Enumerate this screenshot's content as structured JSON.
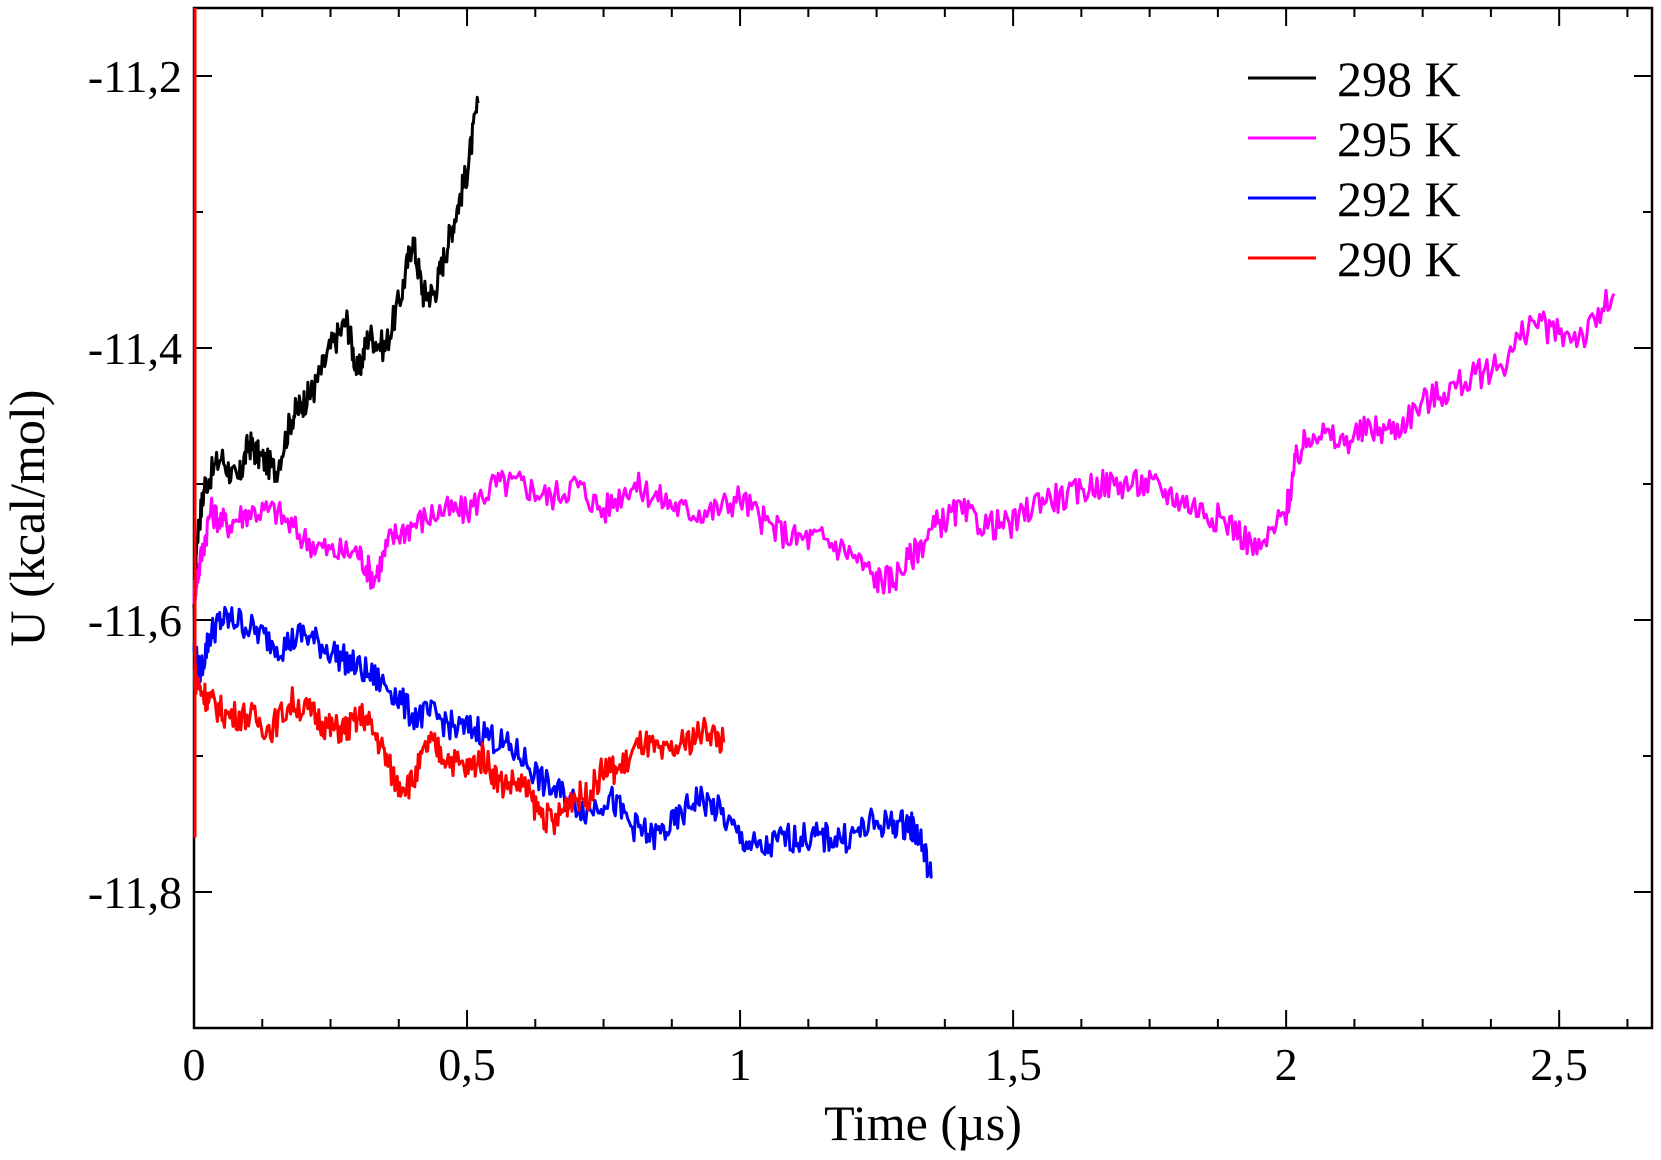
{
  "chart_data": {
    "type": "line",
    "xlabel": "Time (µs)",
    "ylabel": "U (kcal/mol)",
    "xlim": [
      0,
      2.67
    ],
    "ylim": [
      -11.9,
      -11.15
    ],
    "x_ticks": [
      0,
      0.5,
      1,
      1.5,
      2,
      2.5
    ],
    "x_tick_labels": [
      "0",
      "0,5",
      "1",
      "1,5",
      "2",
      "2,5"
    ],
    "y_ticks": [
      -11.8,
      -11.6,
      -11.4,
      -11.2
    ],
    "y_tick_labels": [
      "-11,8",
      "-11,6",
      "-11,4",
      "-11,2"
    ],
    "grid": false,
    "legend_position": "top-right",
    "series": [
      {
        "name": "298 K",
        "color": "#000000",
        "x": [
          0,
          0.005,
          0.02,
          0.05,
          0.08,
          0.1,
          0.12,
          0.15,
          0.18,
          0.2,
          0.22,
          0.25,
          0.28,
          0.3,
          0.32,
          0.35,
          0.38,
          0.4,
          0.42,
          0.44,
          0.46,
          0.48,
          0.5,
          0.52
        ],
        "y": [
          -11.6,
          -11.54,
          -11.5,
          -11.48,
          -11.5,
          -11.47,
          -11.48,
          -11.49,
          -11.45,
          -11.44,
          -11.43,
          -11.4,
          -11.38,
          -11.42,
          -11.39,
          -11.4,
          -11.36,
          -11.32,
          -11.36,
          -11.36,
          -11.33,
          -11.3,
          -11.27,
          -11.22
        ]
      },
      {
        "name": "295 K",
        "color": "#ff00ff",
        "x": [
          0,
          0.01,
          0.03,
          0.06,
          0.1,
          0.15,
          0.2,
          0.25,
          0.3,
          0.33,
          0.36,
          0.4,
          0.45,
          0.5,
          0.55,
          0.6,
          0.65,
          0.7,
          0.75,
          0.8,
          0.85,
          0.9,
          0.95,
          1.0,
          1.05,
          1.1,
          1.15,
          1.2,
          1.25,
          1.28,
          1.32,
          1.36,
          1.4,
          1.45,
          1.5,
          1.55,
          1.6,
          1.65,
          1.7,
          1.75,
          1.8,
          1.85,
          1.9,
          1.95,
          2.0,
          2.02,
          2.05,
          2.1,
          2.15,
          2.2,
          2.25,
          2.3,
          2.35,
          2.4,
          2.45,
          2.5,
          2.55,
          2.6
        ],
        "y": [
          -11.58,
          -11.56,
          -11.52,
          -11.53,
          -11.52,
          -11.52,
          -11.54,
          -11.55,
          -11.55,
          -11.57,
          -11.54,
          -11.53,
          -11.52,
          -11.52,
          -11.5,
          -11.5,
          -11.51,
          -11.5,
          -11.52,
          -11.5,
          -11.51,
          -11.52,
          -11.52,
          -11.51,
          -11.53,
          -11.54,
          -11.54,
          -11.55,
          -11.57,
          -11.57,
          -11.55,
          -11.53,
          -11.52,
          -11.53,
          -11.53,
          -11.51,
          -11.51,
          -11.5,
          -11.5,
          -11.5,
          -11.51,
          -11.52,
          -11.53,
          -11.55,
          -11.52,
          -11.48,
          -11.46,
          -11.47,
          -11.46,
          -11.46,
          -11.44,
          -11.43,
          -11.42,
          -11.41,
          -11.38,
          -11.39,
          -11.39,
          -11.36
        ]
      },
      {
        "name": "292 K",
        "color": "#0000ff",
        "x": [
          0,
          0.01,
          0.03,
          0.05,
          0.08,
          0.12,
          0.16,
          0.2,
          0.24,
          0.28,
          0.32,
          0.36,
          0.4,
          0.44,
          0.48,
          0.52,
          0.56,
          0.6,
          0.64,
          0.68,
          0.72,
          0.76,
          0.8,
          0.84,
          0.88,
          0.92,
          0.96,
          1.0,
          1.04,
          1.08,
          1.12,
          1.16,
          1.2,
          1.24,
          1.28,
          1.31,
          1.33,
          1.35
        ],
        "y": [
          -11.62,
          -11.64,
          -11.61,
          -11.6,
          -11.6,
          -11.61,
          -11.62,
          -11.61,
          -11.62,
          -11.63,
          -11.64,
          -11.65,
          -11.67,
          -11.67,
          -11.68,
          -11.68,
          -11.69,
          -11.7,
          -11.72,
          -11.73,
          -11.74,
          -11.73,
          -11.75,
          -11.76,
          -11.75,
          -11.73,
          -11.74,
          -11.76,
          -11.77,
          -11.76,
          -11.76,
          -11.76,
          -11.76,
          -11.75,
          -11.75,
          -11.75,
          -11.76,
          -11.79
        ]
      },
      {
        "name": "290 K",
        "color": "#ff0000",
        "x": [
          0,
          0.01,
          0.03,
          0.06,
          0.1,
          0.14,
          0.18,
          0.22,
          0.25,
          0.28,
          0.31,
          0.34,
          0.37,
          0.4,
          0.43,
          0.46,
          0.5,
          0.53,
          0.56,
          0.6,
          0.63,
          0.66,
          0.69,
          0.72,
          0.75,
          0.78,
          0.82,
          0.86,
          0.9,
          0.94,
          0.97
        ],
        "y": [
          -11.64,
          -11.65,
          -11.66,
          -11.67,
          -11.67,
          -11.68,
          -11.66,
          -11.67,
          -11.68,
          -11.68,
          -11.67,
          -11.69,
          -11.72,
          -11.72,
          -11.69,
          -11.7,
          -11.71,
          -11.7,
          -11.72,
          -11.72,
          -11.74,
          -11.75,
          -11.73,
          -11.73,
          -11.71,
          -11.71,
          -11.69,
          -11.7,
          -11.69,
          -11.68,
          -11.69
        ]
      }
    ]
  }
}
